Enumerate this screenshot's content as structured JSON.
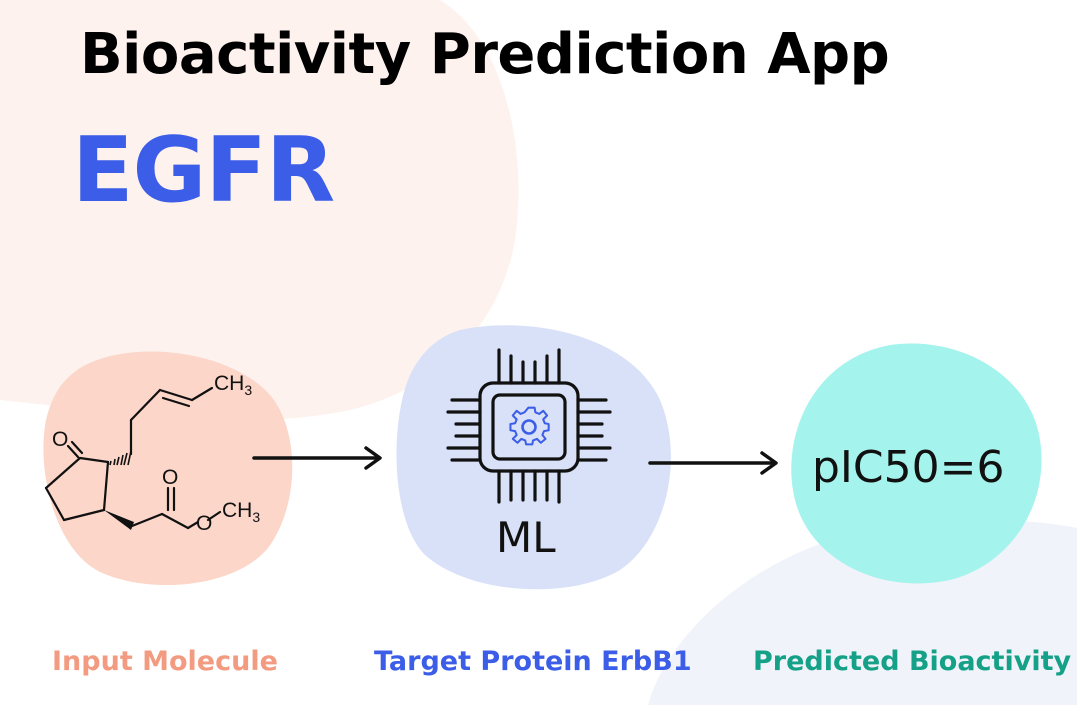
{
  "header": {
    "title": "Bioactivity Prediction App",
    "target": "EGFR"
  },
  "molecule": {
    "atoms": {
      "oxygen_ketone": "O",
      "oxygen_ester_carbonyl": "O",
      "oxygen_ester": "O"
    },
    "methyl_top": {
      "main": "CH",
      "sub": "3"
    },
    "methyl_ester": {
      "main": "CH",
      "sub": "3"
    }
  },
  "model": {
    "label": "ML",
    "icon": "cpu-gear-icon"
  },
  "prediction": {
    "value": "pIC50=6"
  },
  "captions": {
    "input": "Input Molecule",
    "protein": "Target Protein ErbB1",
    "bioactivity": "Predicted Bioactivity"
  },
  "colors": {
    "title": "#000000",
    "target": "#3b5de7",
    "input": "#f29b80",
    "protein": "#3b5de7",
    "bioactivity": "#15a187",
    "blob_molecule": "#fbd6c9",
    "blob_ml": "#d8e1f8",
    "blob_prediction": "#a4f3ec"
  }
}
